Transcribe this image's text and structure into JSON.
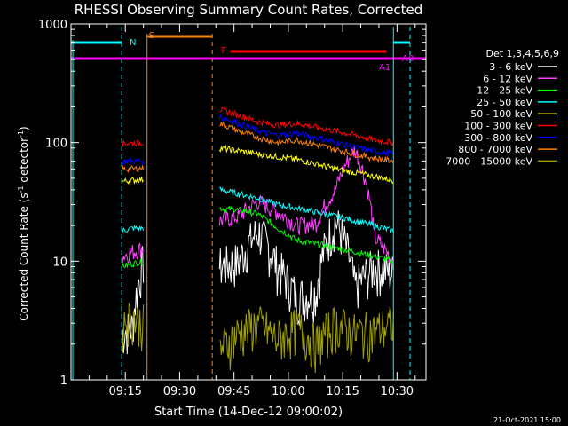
{
  "chart_data": {
    "type": "line",
    "title": "RHESSI Observing Summary Count Rates, Corrected",
    "xlabel": "Start Time (14-Dec-12 09:00:02)",
    "ylabel_main": "Corrected Count Rate (s",
    "ylabel_sup1": "-1",
    "ylabel_mid": " detector",
    "ylabel_sup2": "-1",
    "ylabel_end": ")",
    "yscale": "log",
    "ylim": [
      1,
      1000
    ],
    "xlim_minutes": [
      0,
      98
    ],
    "y_ticks": [
      "1",
      "10",
      "100",
      "1000"
    ],
    "x_ticks": [
      {
        "label": "09:15",
        "minute": 15
      },
      {
        "label": "09:30",
        "minute": 30
      },
      {
        "label": "09:45",
        "minute": 45
      },
      {
        "label": "10:00",
        "minute": 60
      },
      {
        "label": "10:15",
        "minute": 75
      },
      {
        "label": "10:30",
        "minute": 90
      }
    ],
    "legend_title": "Det 1,3,4,5,6,9",
    "series": [
      {
        "name": "3 - 6 keV",
        "color": "#ffffff",
        "seg1": [
          2.5,
          2.8,
          10
        ],
        "seg2": [
          9,
          10,
          18,
          9,
          5,
          5.5,
          22,
          6,
          9,
          8
        ]
      },
      {
        "name": "6 - 12 keV",
        "color": "#ff40ff",
        "seg1": [
          11,
          12,
          13
        ],
        "seg2": [
          22,
          24,
          32,
          26,
          20,
          21,
          40,
          88,
          16,
          10
        ]
      },
      {
        "name": "12 - 25 keV",
        "color": "#00ff00",
        "seg1": [
          9,
          9.5,
          10
        ],
        "seg2": [
          28,
          27,
          25,
          19,
          15,
          14,
          13,
          12,
          11,
          10
        ]
      },
      {
        "name": "25 - 50 keV",
        "color": "#00ffff",
        "seg1": [
          18,
          19,
          19
        ],
        "seg2": [
          40,
          37,
          34,
          30,
          28,
          26,
          24,
          22,
          20,
          18
        ]
      },
      {
        "name": "50 - 100 keV",
        "color": "#ffff00",
        "seg1": [
          47,
          48,
          49
        ],
        "seg2": [
          90,
          85,
          80,
          76,
          72,
          66,
          60,
          56,
          52,
          48
        ]
      },
      {
        "name": "100 - 300 keV",
        "color": "#ff0000",
        "seg1": [
          99,
          99,
          100
        ],
        "seg2": [
          190,
          170,
          150,
          140,
          145,
          135,
          125,
          115,
          105,
          100
        ]
      },
      {
        "name": "300 - 800 keV",
        "color": "#0000ff",
        "seg1": [
          69,
          70,
          70
        ],
        "seg2": [
          165,
          145,
          125,
          115,
          120,
          110,
          100,
          92,
          85,
          80
        ]
      },
      {
        "name": "800 - 7000 keV",
        "color": "#ff8000",
        "seg1": [
          60,
          60,
          61
        ],
        "seg2": [
          145,
          125,
          110,
          100,
          105,
          96,
          88,
          80,
          74,
          70
        ]
      },
      {
        "name": "7000 - 15000 keV",
        "color": "#a0a000",
        "seg1": [
          3,
          3.5,
          3
        ],
        "seg2": [
          1.8,
          2.5,
          3,
          2.2,
          2.8,
          2,
          3,
          2.5,
          2.6,
          3
        ]
      }
    ],
    "segment_minutes": {
      "seg1": [
        14,
        20
      ],
      "seg2": [
        41,
        89
      ]
    },
    "flags": {
      "night_label": "N",
      "saa_label": "S",
      "flare_label": "F",
      "attenuator_labels": [
        "A1",
        "A0"
      ]
    },
    "flag_colors": {
      "night": "#00ffff",
      "saa": "#ff8000",
      "flare": "#ff0000",
      "attenuator": "#ff00ff"
    },
    "timestamp": "21-Oct-2021 15:00"
  }
}
